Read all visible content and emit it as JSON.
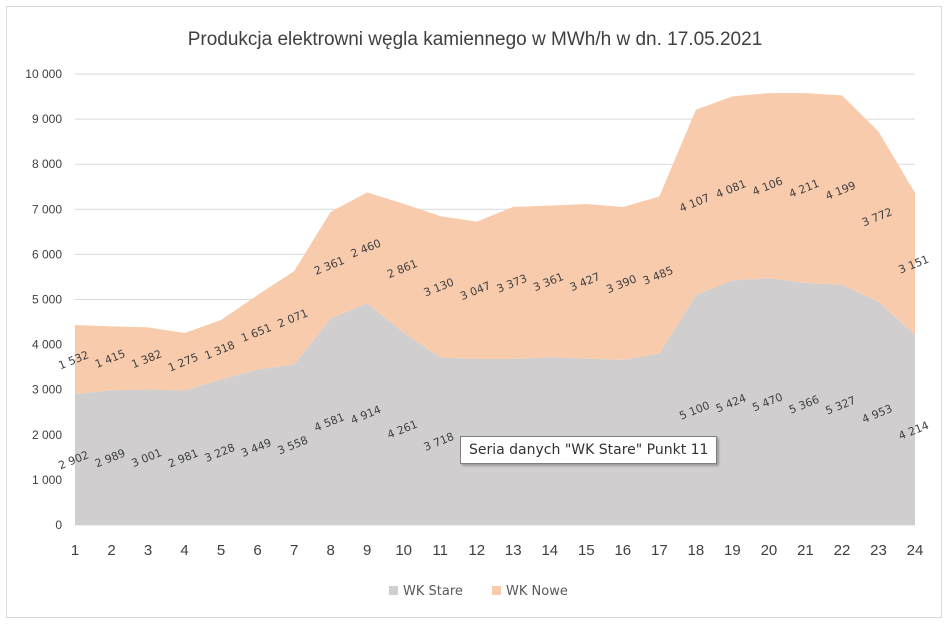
{
  "chart_data": {
    "type": "area",
    "stacked": true,
    "title": "Produkcja elektrowni węgla kamiennego w MWh/h w dn. 17.05.2021",
    "categories": [
      "1",
      "2",
      "3",
      "4",
      "5",
      "6",
      "7",
      "8",
      "9",
      "10",
      "11",
      "12",
      "13",
      "14",
      "15",
      "16",
      "17",
      "18",
      "19",
      "20",
      "21",
      "22",
      "23",
      "24"
    ],
    "series": [
      {
        "name": "WK Stare",
        "color": "#d0cece",
        "values": [
          2902,
          2989,
          3001,
          2981,
          3228,
          3449,
          3558,
          4581,
          4914,
          4261,
          3718,
          3680,
          3680,
          3720,
          3690,
          3660,
          3800,
          5100,
          5424,
          5470,
          5366,
          5327,
          4953,
          4214
        ],
        "labels": [
          "2 902",
          "2 989",
          "3 001",
          "2 981",
          "3 228",
          "3 449",
          "3 558",
          "4 581",
          "4 914",
          "4 261",
          "3 718",
          "",
          "",
          "",
          "",
          "",
          "",
          "5 100",
          "5 424",
          "5 470",
          "5 366",
          "5 327",
          "4 953",
          "4 214"
        ]
      },
      {
        "name": "WK Nowe",
        "color": "#f8cbad",
        "values": [
          1532,
          1415,
          1382,
          1275,
          1318,
          1651,
          2071,
          2361,
          2460,
          2861,
          3130,
          3047,
          3373,
          3361,
          3427,
          3390,
          3485,
          4107,
          4081,
          4106,
          4211,
          4199,
          3772,
          3151
        ],
        "labels": [
          "1 532",
          "1 415",
          "1 382",
          "1 275",
          "1 318",
          "1 651",
          "2 071",
          "2 361",
          "2 460",
          "2 861",
          "3 130",
          "3 047",
          "3 373",
          "3 361",
          "3 427",
          "3 390",
          "3 485",
          "4 107",
          "4 081",
          "4 106",
          "4 211",
          "4 199",
          "3 772",
          "3 151"
        ]
      }
    ],
    "yticks": [
      "0",
      "1 000",
      "2 000",
      "3 000",
      "4 000",
      "5 000",
      "6 000",
      "7 000",
      "8 000",
      "9 000",
      "10 000"
    ],
    "ylim": [
      0,
      10000
    ],
    "grid": true,
    "legend_position": "bottom",
    "label_rotation_deg": -22
  },
  "tooltip": "Seria danych \"WK Stare\" Punkt 11"
}
